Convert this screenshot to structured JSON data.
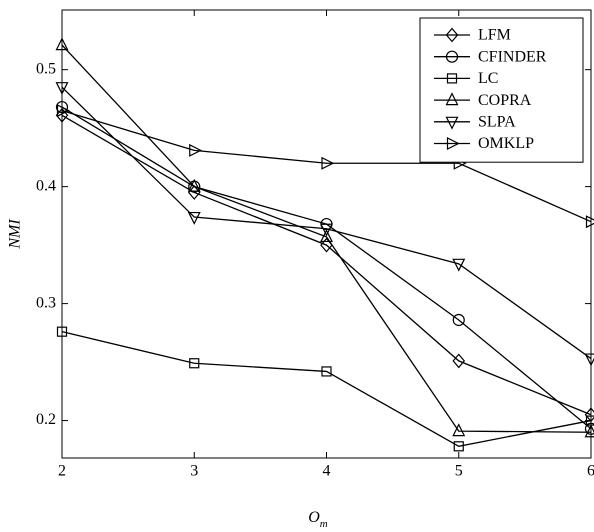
{
  "chart_data": {
    "type": "line",
    "xlabel": "O",
    "xlabel_subscript": "m",
    "ylabel": "NMI",
    "x": [
      2,
      3,
      4,
      5,
      6
    ],
    "xlim": [
      2,
      6
    ],
    "xticks": [
      2,
      3,
      4,
      5,
      6
    ],
    "ylim": [
      0.168,
      0.551
    ],
    "yticks": [
      0.2,
      0.3,
      0.4,
      0.5
    ],
    "legend": "upper right",
    "series": [
      {
        "name": "LFM",
        "color": "#000000",
        "marker": "diamond",
        "values": [
          0.461,
          0.395,
          0.35,
          0.251,
          0.205
        ]
      },
      {
        "name": "CFINDER",
        "color": "#000000",
        "marker": "circle",
        "values": [
          0.468,
          0.4,
          0.368,
          0.286,
          0.193
        ]
      },
      {
        "name": "LC",
        "color": "#000000",
        "marker": "square",
        "values": [
          0.276,
          0.249,
          0.242,
          0.178,
          0.2
        ]
      },
      {
        "name": "COPRA",
        "color": "#000000",
        "marker": "triangle-up",
        "values": [
          0.521,
          0.4,
          0.357,
          0.191,
          0.19
        ]
      },
      {
        "name": "SLPA",
        "color": "#000000",
        "marker": "triangle-down",
        "values": [
          0.485,
          0.374,
          0.364,
          0.334,
          0.253
        ]
      },
      {
        "name": "OMKLP",
        "color": "#000000",
        "marker": "triangle-right",
        "values": [
          0.465,
          0.431,
          0.42,
          0.42,
          0.37
        ]
      }
    ]
  }
}
